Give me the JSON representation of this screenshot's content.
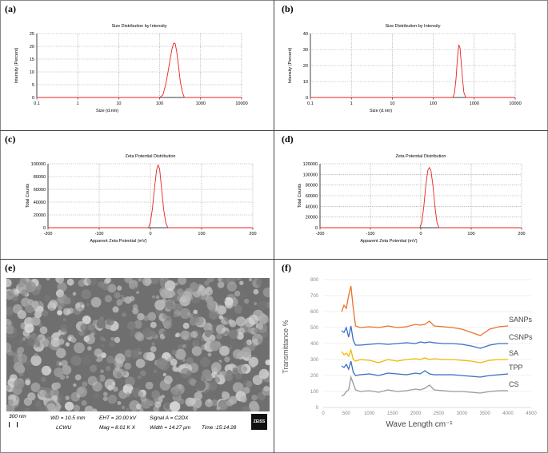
{
  "panels": {
    "a": "(a)",
    "b": "(b)",
    "c": "(c)",
    "d": "(d)",
    "e": "(e)",
    "f": "(f)"
  },
  "chart_data": [
    {
      "id": "a",
      "type": "line",
      "title": "Size Distribution by Intensity",
      "xlabel": "Size (d.nm)",
      "ylabel": "Intensity (Percent)",
      "xscale": "log",
      "xlim": [
        0.1,
        10000
      ],
      "ylim": [
        0,
        25
      ],
      "xticks": [
        0.1,
        1,
        10,
        100,
        1000,
        10000
      ],
      "xtick_labels": [
        "0.1",
        "1",
        "10",
        "100",
        "1000",
        "10000"
      ],
      "yticks": [
        0,
        5,
        10,
        15,
        20,
        25
      ],
      "ytick_labels": [
        "0",
        "5",
        "10",
        "15",
        "20",
        "25"
      ],
      "grid": true,
      "series": [
        {
          "color": "#e8231f",
          "x": [
            0.1,
            100,
            120,
            140,
            160,
            180,
            200,
            220,
            240,
            260,
            290,
            320,
            360,
            400,
            10000
          ],
          "y": [
            0,
            0,
            1,
            5,
            10,
            15,
            19,
            21.3,
            21,
            18,
            12,
            6,
            2,
            0,
            0
          ]
        }
      ]
    },
    {
      "id": "b",
      "type": "line",
      "title": "Size Distribution by Intensity",
      "xlabel": "Size (d.nm)",
      "ylabel": "Intensity (Percent)",
      "xscale": "log",
      "xlim": [
        0.1,
        10000
      ],
      "ylim": [
        0,
        40
      ],
      "xticks": [
        0.1,
        1,
        10,
        100,
        1000,
        10000
      ],
      "xtick_labels": [
        "0.1",
        "1",
        "10",
        "100",
        "1000",
        "10000"
      ],
      "yticks": [
        0,
        10,
        20,
        30,
        40
      ],
      "ytick_labels": [
        "0",
        "10",
        "20",
        "30",
        "40"
      ],
      "grid": true,
      "series": [
        {
          "color": "#e8231f",
          "x": [
            0.1,
            300,
            330,
            360,
            390,
            420,
            450,
            480,
            520,
            560,
            620,
            10000
          ],
          "y": [
            0,
            0,
            3,
            12,
            25,
            33,
            31,
            22,
            11,
            3,
            0,
            0
          ]
        }
      ]
    },
    {
      "id": "c",
      "type": "line",
      "title": "Zeta Potential Distribution",
      "xlabel": "Apparent Zeta Potential (mV)",
      "ylabel": "Total Counts",
      "xlim": [
        -200,
        200
      ],
      "ylim": [
        0,
        100000
      ],
      "xticks": [
        -200,
        -100,
        0,
        100,
        200
      ],
      "xtick_labels": [
        "-200",
        "-100",
        "0",
        "100",
        "200"
      ],
      "yticks": [
        0,
        20000,
        40000,
        60000,
        80000,
        100000
      ],
      "ytick_labels": [
        "0",
        "20000",
        "40000",
        "60000",
        "80000",
        "100000"
      ],
      "grid": true,
      "series": [
        {
          "color": "#e8231f",
          "x": [
            -200,
            -4,
            0,
            4,
            8,
            12,
            15,
            18,
            22,
            26,
            30,
            34,
            200
          ],
          "y": [
            0,
            0,
            8000,
            30000,
            62000,
            90000,
            98000,
            92000,
            60000,
            28000,
            8000,
            0,
            0
          ]
        }
      ]
    },
    {
      "id": "d",
      "type": "line",
      "title": "Zeta Potential Distribution",
      "xlabel": "Apparent Zeta Potential (mV)",
      "ylabel": "Total Counts",
      "xlim": [
        -200,
        200
      ],
      "ylim": [
        0,
        120000
      ],
      "xticks": [
        -200,
        -100,
        0,
        100,
        200
      ],
      "xtick_labels": [
        "-200",
        "-100",
        "0",
        "100",
        "200"
      ],
      "yticks": [
        0,
        20000,
        40000,
        60000,
        80000,
        100000,
        120000
      ],
      "ytick_labels": [
        "0",
        "20000",
        "40000",
        "60000",
        "80000",
        "100000",
        "120000"
      ],
      "grid": true,
      "series": [
        {
          "color": "#e8231f",
          "x": [
            -200,
            -2,
            2,
            6,
            10,
            14,
            17,
            20,
            24,
            28,
            32,
            36,
            200
          ],
          "y": [
            0,
            0,
            10000,
            40000,
            80000,
            108000,
            113000,
            108000,
            80000,
            40000,
            10000,
            0,
            0
          ]
        }
      ]
    },
    {
      "id": "f",
      "type": "line",
      "xlabel": "Wave Length cm⁻¹",
      "ylabel": "Transmittance %",
      "xlim": [
        0,
        4500
      ],
      "ylim": [
        0,
        800
      ],
      "xticks": [
        0,
        500,
        1000,
        1500,
        2000,
        2500,
        3000,
        3500,
        4000,
        4500
      ],
      "xtick_labels": [
        "0",
        "500",
        "1000",
        "1500",
        "2000",
        "2500",
        "3000",
        "3500",
        "4000",
        "4500"
      ],
      "yticks": [
        0,
        100,
        200,
        300,
        400,
        500,
        600,
        700,
        800
      ],
      "ytick_labels": [
        "0",
        "100",
        "200",
        "300",
        "400",
        "500",
        "600",
        "700",
        "800"
      ],
      "grid": true,
      "series": [
        {
          "name": "SANPs",
          "color": "#e8742b",
          "x": [
            400,
            450,
            500,
            550,
            600,
            650,
            700,
            800,
            1000,
            1200,
            1400,
            1600,
            1800,
            2000,
            2100,
            2200,
            2300,
            2400,
            2600,
            2800,
            3000,
            3200,
            3400,
            3600,
            3800,
            4000
          ],
          "y": [
            600,
            640,
            620,
            700,
            760,
            620,
            510,
            500,
            505,
            500,
            510,
            500,
            505,
            520,
            515,
            520,
            540,
            510,
            505,
            500,
            490,
            470,
            450,
            490,
            505,
            510
          ]
        },
        {
          "name": "CSNPs",
          "color": "#3a6fc4",
          "x": [
            400,
            450,
            500,
            550,
            600,
            650,
            700,
            800,
            1000,
            1200,
            1400,
            1600,
            1800,
            2000,
            2100,
            2200,
            2300,
            2400,
            2600,
            2800,
            3000,
            3200,
            3400,
            3600,
            3800,
            4000
          ],
          "y": [
            480,
            470,
            500,
            440,
            510,
            420,
            390,
            390,
            395,
            400,
            395,
            400,
            405,
            400,
            410,
            405,
            410,
            405,
            400,
            400,
            395,
            385,
            370,
            390,
            400,
            400
          ]
        },
        {
          "name": "SA",
          "color": "#f2b800",
          "x": [
            400,
            450,
            500,
            550,
            600,
            650,
            700,
            800,
            1000,
            1200,
            1400,
            1600,
            1800,
            2000,
            2100,
            2200,
            2300,
            2400,
            2600,
            2800,
            3000,
            3200,
            3400,
            3600,
            3800,
            4000
          ],
          "y": [
            350,
            330,
            340,
            320,
            360,
            300,
            290,
            300,
            295,
            280,
            300,
            290,
            300,
            305,
            300,
            310,
            300,
            305,
            300,
            300,
            295,
            290,
            280,
            295,
            300,
            300
          ]
        },
        {
          "name": "TPP",
          "color": "#3a6fc4",
          "x": [
            400,
            450,
            500,
            550,
            600,
            650,
            700,
            800,
            1000,
            1200,
            1400,
            1600,
            1800,
            2000,
            2100,
            2200,
            2300,
            2400,
            2600,
            2800,
            3000,
            3200,
            3400,
            3600,
            3800,
            4000
          ],
          "y": [
            260,
            250,
            270,
            240,
            290,
            220,
            200,
            205,
            210,
            200,
            215,
            210,
            205,
            215,
            210,
            230,
            210,
            205,
            205,
            205,
            200,
            195,
            190,
            200,
            205,
            210
          ]
        },
        {
          "name": "CS",
          "color": "#9a9a9a",
          "x": [
            400,
            450,
            500,
            550,
            600,
            650,
            700,
            800,
            1000,
            1200,
            1400,
            1600,
            1800,
            2000,
            2100,
            2200,
            2300,
            2400,
            2600,
            2800,
            3000,
            3200,
            3400,
            3600,
            3800,
            4000
          ],
          "y": [
            70,
            80,
            100,
            110,
            190,
            150,
            110,
            100,
            105,
            95,
            110,
            100,
            105,
            115,
            110,
            120,
            140,
            110,
            105,
            100,
            100,
            95,
            90,
            100,
            105,
            105
          ]
        }
      ]
    }
  ],
  "sem": {
    "scale": "300 nm",
    "wd": "WD = 10.5 mm",
    "inst": "LCWU",
    "eht": "EHT = 20.00 kV",
    "mag": "Mag =   8.01 K X",
    "signal": "Signal A = C2DX",
    "width": "Width = 14.27 µm",
    "time": "Time :15:14:28",
    "brand": "ZEISS"
  }
}
